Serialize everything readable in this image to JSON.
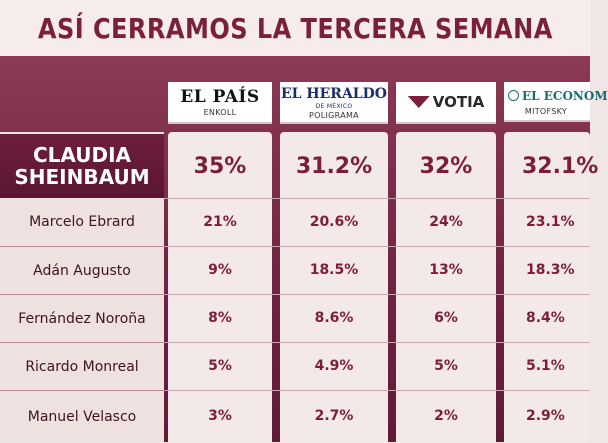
{
  "title": "ASÍ CERRAMOS LA TERCERA SEMANA",
  "pollsters": [
    {
      "outlet": "EL PAÍS",
      "pollster": "ENKOLL",
      "logo_icon": "el-pais-logo"
    },
    {
      "outlet": "EL HERALDO",
      "outlet_sub": "DE MÉXICO",
      "pollster": "POLIGRAMA",
      "logo_icon": "el-heraldo-logo"
    },
    {
      "outlet": "VOTIA",
      "pollster": "",
      "logo_icon": "votia-logo"
    },
    {
      "outlet": "EL ECONOM",
      "pollster": "MITOFSKY",
      "logo_icon": "el-economista-logo"
    }
  ],
  "leader": {
    "first": "CLAUDIA",
    "last": "SHEINBAUM",
    "values": [
      "35%",
      "31.2%",
      "32%",
      "32.1%"
    ]
  },
  "rows": [
    {
      "name": "Marcelo Ebrard",
      "values": [
        "21%",
        "20.6%",
        "24%",
        "23.1%"
      ]
    },
    {
      "name": "Adán Augusto",
      "values": [
        "9%",
        "18.5%",
        "13%",
        "18.3%"
      ]
    },
    {
      "name": "Fernández Noroña",
      "values": [
        "8%",
        "8.6%",
        "6%",
        "8.4%"
      ]
    },
    {
      "name": "Ricardo Monreal",
      "values": [
        "5%",
        "4.9%",
        "5%",
        "5.1%"
      ]
    },
    {
      "name": "Manuel Velasco",
      "values": [
        "3%",
        "2.7%",
        "2%",
        "2.9%"
      ]
    }
  ],
  "colors": {
    "accent": "#7a1f3c",
    "panel": "#6f2340",
    "cell": "#f4e9e9"
  }
}
